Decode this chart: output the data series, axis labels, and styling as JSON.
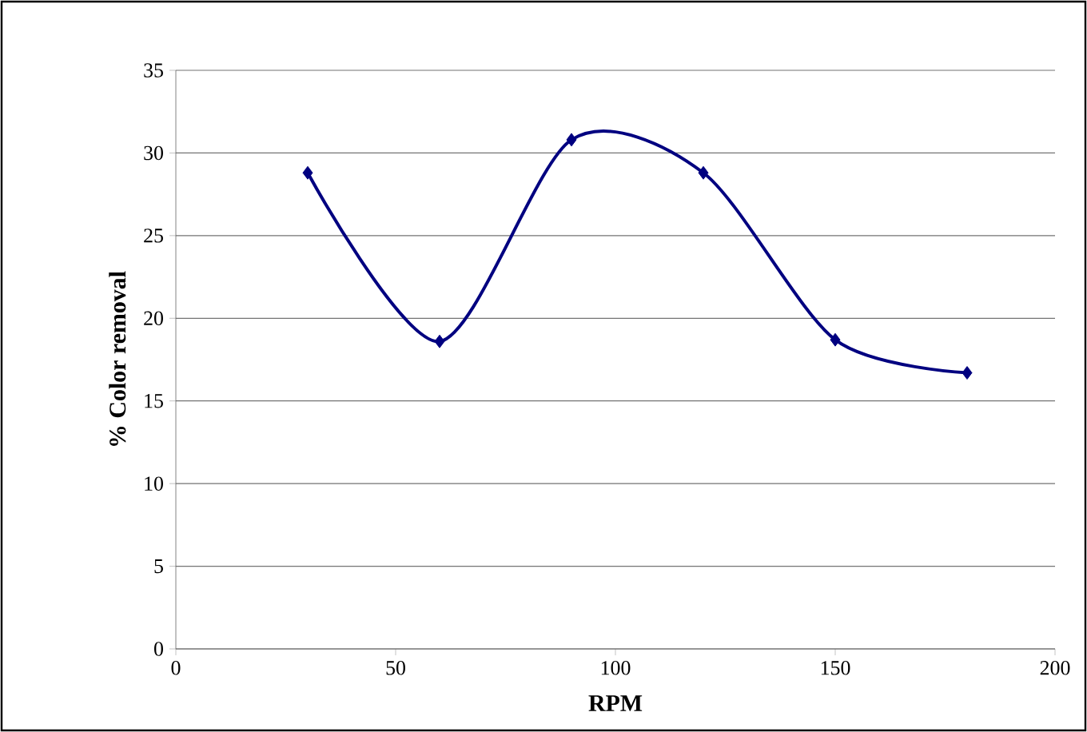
{
  "chart_data": {
    "type": "line",
    "xlabel": "RPM",
    "ylabel": "% Color removal",
    "x": [
      30,
      60,
      90,
      120,
      150,
      180
    ],
    "series": [
      {
        "color": "#000080",
        "values": [
          28.8,
          18.6,
          30.8,
          28.8,
          18.7,
          16.7
        ]
      }
    ],
    "xlim": [
      0,
      200
    ],
    "xticks": [
      0,
      50,
      100,
      150,
      200
    ],
    "ylim": [
      0,
      35
    ],
    "yticks": [
      0,
      5,
      10,
      15,
      20,
      25,
      30,
      35
    ],
    "grid": "y",
    "marker": "diamond",
    "line_style": "solid"
  }
}
